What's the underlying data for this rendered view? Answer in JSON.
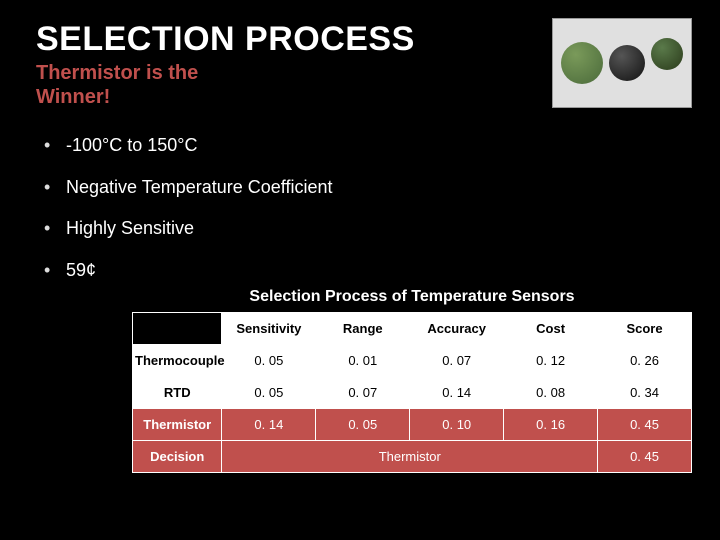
{
  "title": "SELECTION PROCESS",
  "subtitle_line1": "Thermistor is the",
  "subtitle_line2": "Winner!",
  "bullets": {
    "b0": "-100°C to 150°C",
    "b1": "Negative Temperature Coefficient",
    "b2": "Highly Sensitive",
    "b3": "59¢"
  },
  "table": {
    "caption": "Selection Process of Temperature Sensors",
    "headers": {
      "h0": "Sensitivity",
      "h1": "Range",
      "h2": "Accuracy",
      "h3": "Cost",
      "h4": "Score"
    },
    "rows": {
      "r0": {
        "label": "Thermocouple",
        "c0": "0. 05",
        "c1": "0. 01",
        "c2": "0. 07",
        "c3": "0. 12",
        "c4": "0. 26"
      },
      "r1": {
        "label": "RTD",
        "c0": "0. 05",
        "c1": "0. 07",
        "c2": "0. 14",
        "c3": "0. 08",
        "c4": "0. 34"
      },
      "r2": {
        "label": "Thermistor",
        "c0": "0. 14",
        "c1": "0. 05",
        "c2": "0. 10",
        "c3": "0. 16",
        "c4": "0. 45"
      },
      "r3": {
        "label": "Decision",
        "merged": "Thermistor",
        "score": "0. 45"
      }
    }
  },
  "colors": {
    "accent_red": "#c0504d",
    "bg": "#000000",
    "cell_white": "#ffffff"
  }
}
